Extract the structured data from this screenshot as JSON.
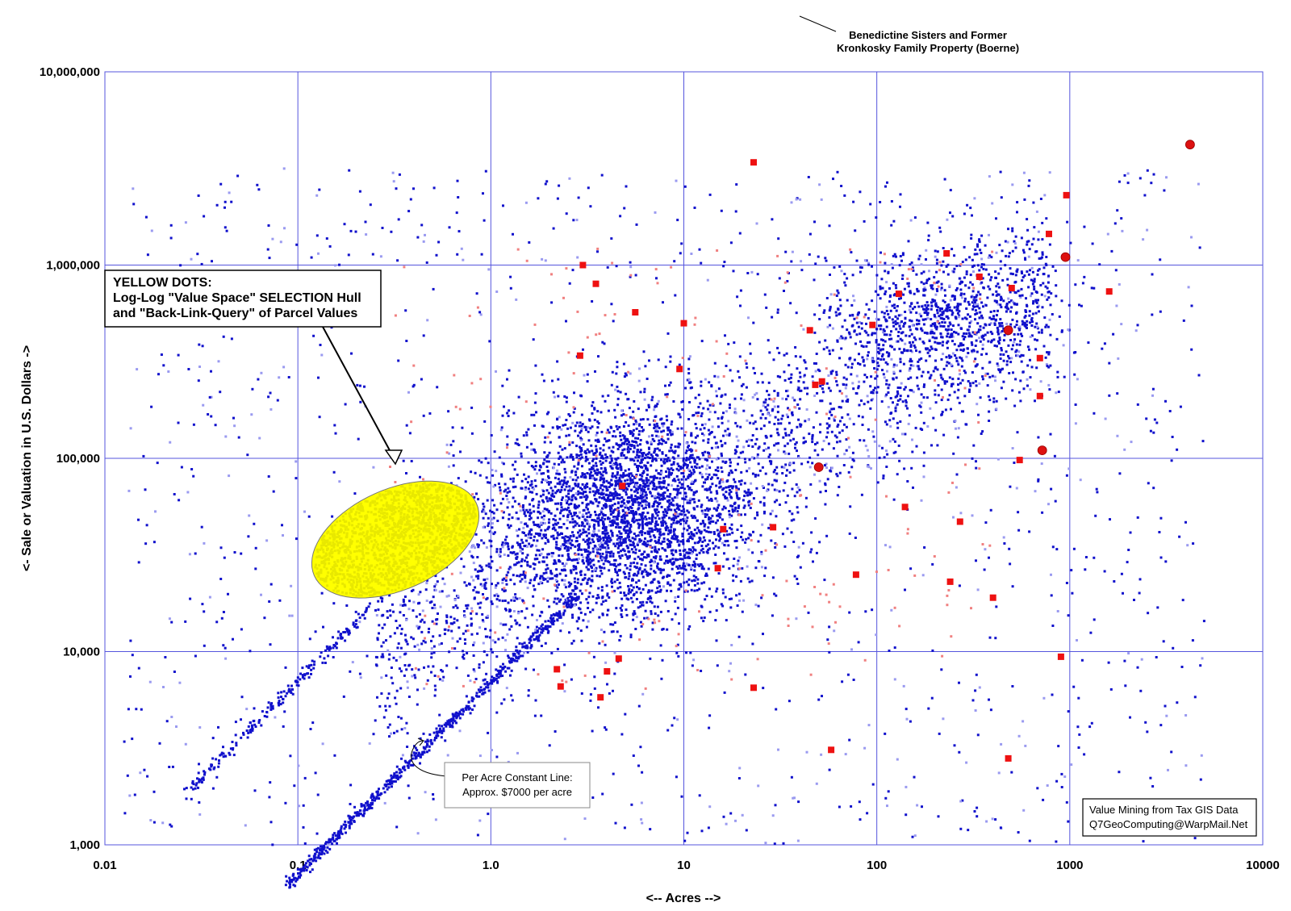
{
  "chart_data": {
    "type": "scatter",
    "title": "",
    "xlabel": "<-- Acres -->",
    "ylabel": "<- Sale or Valuation in U.S. Dollars ->",
    "x_scale": "log",
    "y_scale": "log",
    "xlim": [
      0.01,
      10000
    ],
    "ylim": [
      1000,
      10000000
    ],
    "grid": true,
    "x_ticks": [
      "0.01",
      "0.1",
      "1.0",
      "10",
      "100",
      "1000",
      "10000"
    ],
    "y_ticks": [
      "1,000",
      "10,000",
      "100,000",
      "1,000,000",
      "10,000,000"
    ],
    "colors": {
      "parcels": "#1010cc",
      "parcels_light": "#9a9af0",
      "highlight": "#ee1111",
      "highlight_light": "#f08080",
      "selection": "#ffff00",
      "grid": "#5555dd"
    },
    "series": [
      {
        "marker": "dot",
        "note": "Thousands of parcels; cloud centers near 5 acres / $50,000 and a diagonal band near $7,000 per acre"
      },
      {
        "marker": "square",
        "points": [
          {
            "x": 23,
            "y": 3400000
          },
          {
            "x": 3.0,
            "y": 1000000
          },
          {
            "x": 3.5,
            "y": 800000
          },
          {
            "x": 5.6,
            "y": 570000
          },
          {
            "x": 10,
            "y": 500000
          },
          {
            "x": 2.9,
            "y": 340000
          },
          {
            "x": 9.5,
            "y": 290000
          },
          {
            "x": 4.8,
            "y": 72000
          },
          {
            "x": 960,
            "y": 2300000
          },
          {
            "x": 780,
            "y": 1450000
          },
          {
            "x": 230,
            "y": 1150000
          },
          {
            "x": 1600,
            "y": 730000
          },
          {
            "x": 130,
            "y": 710000
          },
          {
            "x": 340,
            "y": 870000
          },
          {
            "x": 500,
            "y": 760000
          },
          {
            "x": 95,
            "y": 490000
          },
          {
            "x": 45,
            "y": 460000
          },
          {
            "x": 700,
            "y": 330000
          },
          {
            "x": 700,
            "y": 210000
          },
          {
            "x": 550,
            "y": 98000
          },
          {
            "x": 48,
            "y": 240000
          },
          {
            "x": 52,
            "y": 250000
          },
          {
            "x": 15,
            "y": 27000
          },
          {
            "x": 78,
            "y": 25000
          },
          {
            "x": 240,
            "y": 23000
          },
          {
            "x": 900,
            "y": 9400
          },
          {
            "x": 4.0,
            "y": 7900
          },
          {
            "x": 4.6,
            "y": 9200
          },
          {
            "x": 58,
            "y": 3100
          },
          {
            "x": 480,
            "y": 2800
          },
          {
            "x": 2.3,
            "y": 6600
          },
          {
            "x": 3.7,
            "y": 5800
          },
          {
            "x": 23,
            "y": 6500
          },
          {
            "x": 140,
            "y": 56000
          },
          {
            "x": 270,
            "y": 47000
          },
          {
            "x": 400,
            "y": 19000
          },
          {
            "x": 29,
            "y": 44000
          },
          {
            "x": 16,
            "y": 43000
          },
          {
            "x": 2.2,
            "y": 8100
          }
        ]
      },
      {
        "marker": "circle",
        "points": [
          {
            "x": 4200,
            "y": 4200000
          },
          {
            "x": 950,
            "y": 1100000
          },
          {
            "x": 480,
            "y": 460000
          },
          {
            "x": 720,
            "y": 110000
          },
          {
            "x": 50,
            "y": 90000
          }
        ]
      },
      {
        "marker": "dot",
        "note": "Parcels inside the log-log selection hull (about 0.12-1.1 acres, $16,000-$90,000)"
      }
    ]
  },
  "labels": {
    "top_note": [
      "Benedictine Sisters and Former",
      "Kronkosky Family Property (Boerne)"
    ],
    "callout": [
      "YELLOW DOTS:",
      "Log-Log \"Value Space\" SELECTION Hull",
      "and \"Back-Link-Query\" of Parcel Values"
    ],
    "per_acre": [
      "Per Acre Constant Line:",
      "Approx. $7000 per acre"
    ],
    "credit": [
      "Value Mining from Tax GIS Data",
      "Q7GeoComputing@WarpMail.Net"
    ]
  }
}
